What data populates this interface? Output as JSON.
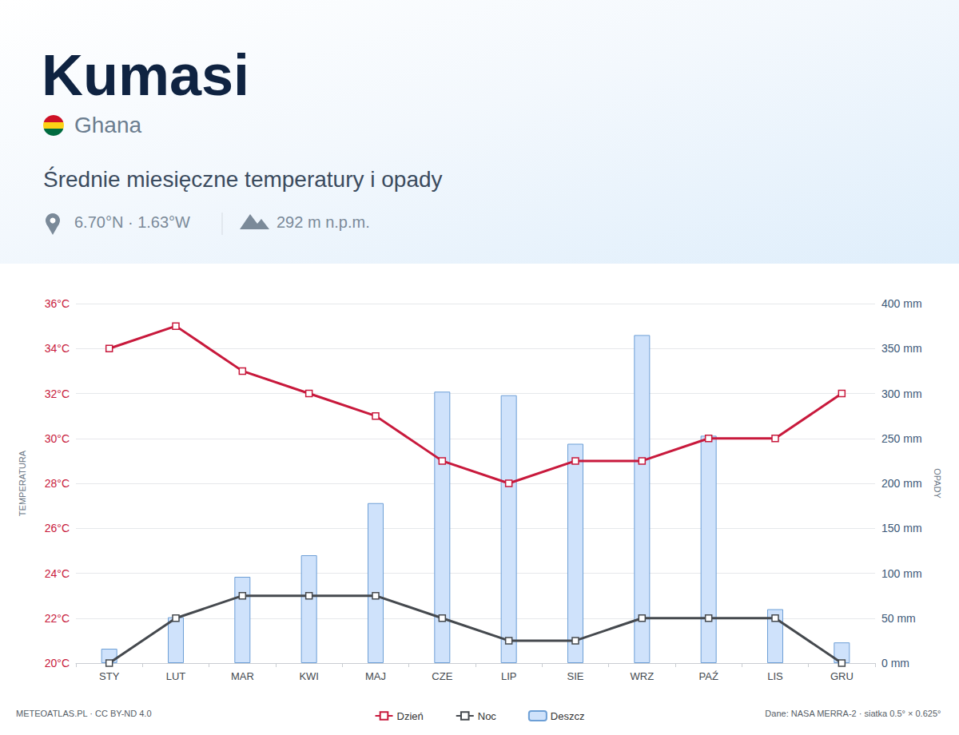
{
  "chart_data": {
    "type": "line",
    "title": "Kumasi",
    "subtitle": "Ghana",
    "description": "Średnie miesięczne temperatury i opady",
    "coordinates": "6.70°N · 1.63°W",
    "elevation": "292 m n.p.m.",
    "source_left": "METEOATLAS.PL · CC BY-ND 4.0",
    "source_right": "Dane: NASA MERRA-2 · siatka 0.5° × 0.625°",
    "ylabel": "TEMPERATURA",
    "y2label": "OPADY",
    "categories": [
      "STY",
      "LUT",
      "MAR",
      "KWI",
      "MAJ",
      "CZE",
      "LIP",
      "SIE",
      "WRZ",
      "PAŹ",
      "LIS",
      "GRU"
    ],
    "series": [
      {
        "name": "Dzień",
        "type": "line",
        "color": "#c8193c",
        "marker": "square",
        "line_style": "solid",
        "values": [
          34,
          35,
          33,
          32,
          31,
          29,
          28,
          29,
          29,
          30,
          30,
          32
        ]
      },
      {
        "name": "Noc",
        "type": "line",
        "color": "#45494e",
        "marker": "square",
        "line_style": "solid",
        "values": [
          20,
          22,
          23,
          23,
          23,
          22,
          21,
          21,
          22,
          22,
          22,
          20
        ]
      },
      {
        "name": "Deszcz",
        "type": "bar",
        "axis": "y2",
        "color": "#cfe2fb",
        "values": [
          16,
          51,
          96,
          120,
          178,
          302,
          298,
          244,
          365,
          253,
          60,
          23
        ]
      }
    ],
    "ylim": [
      20,
      36
    ],
    "yticks": [
      {
        "value": 20,
        "label": "20°C"
      },
      {
        "value": 22,
        "label": "22°C"
      },
      {
        "value": 24,
        "label": "24°C"
      },
      {
        "value": 26,
        "label": "26°C"
      },
      {
        "value": 28,
        "label": "28°C"
      },
      {
        "value": 30,
        "label": "30°C"
      },
      {
        "value": 32,
        "label": "32°C"
      },
      {
        "value": 34,
        "label": "34°C"
      },
      {
        "value": 36,
        "label": "36°C"
      }
    ],
    "y2lim": [
      0,
      400
    ],
    "y2ticks": [
      {
        "value": 0,
        "label": "0 mm"
      },
      {
        "value": 50,
        "label": "50 mm"
      },
      {
        "value": 100,
        "label": "100 mm"
      },
      {
        "value": 150,
        "label": "150 mm"
      },
      {
        "value": 200,
        "label": "200 mm"
      },
      {
        "value": 250,
        "label": "250 mm"
      },
      {
        "value": 300,
        "label": "300 mm"
      },
      {
        "value": 350,
        "label": "350 mm"
      },
      {
        "value": 400,
        "label": "400 mm"
      }
    ],
    "grid": true,
    "legend": "bottom"
  }
}
